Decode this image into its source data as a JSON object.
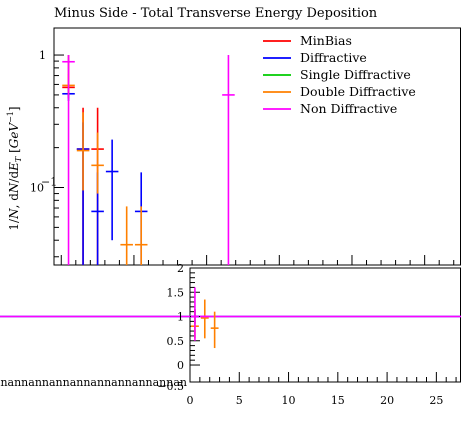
{
  "chart_data": [
    {
      "type": "scatter",
      "title": "Minus Side - Total Transverse Energy Deposition",
      "ylabel": "1/N dN/dE_T [GeV^-1]",
      "ylabel_parts": [
        "1/",
        "N",
        ", d",
        "N",
        "/d",
        "E",
        "T",
        " [",
        "GeV",
        "−1",
        "]"
      ],
      "yscale": "log",
      "ylim": [
        0.026,
        1.6
      ],
      "xlim": [
        -0.5,
        27.5
      ],
      "y_major_ticks": [
        0.1,
        1
      ],
      "y_tick_labels": [
        "10",
        "−1",
        "1"
      ],
      "legend_position": "top-right",
      "series": [
        {
          "name": "MinBias",
          "color": "#ff0000",
          "points": [
            {
              "x": 0.5,
              "y": 0.57,
              "xerr": 0.5,
              "ylo": 0.47,
              "yhi": 1.0
            },
            {
              "x": 1.5,
              "y": 0.195,
              "xerr": 0.5,
              "ylo": 0.0,
              "yhi": 0.4
            },
            {
              "x": 2.5,
              "y": 0.195,
              "xerr": 0.5,
              "ylo": 0.0,
              "yhi": 0.4
            }
          ]
        },
        {
          "name": "Diffractive",
          "color": "#0000ff",
          "points": [
            {
              "x": 0.5,
              "y": 0.51,
              "xerr": 0.5,
              "ylo": 0.45,
              "yhi": 0.57
            },
            {
              "x": 1.5,
              "y": 0.195,
              "xerr": 0.5,
              "ylo": 0.0,
              "yhi": 0.31
            },
            {
              "x": 2.5,
              "y": 0.066,
              "xerr": 0.5,
              "ylo": 0.0,
              "yhi": 0.13
            },
            {
              "x": 3.5,
              "y": 0.132,
              "xerr": 0.5,
              "ylo": 0.04,
              "yhi": 0.23
            },
            {
              "x": 5.5,
              "y": 0.066,
              "xerr": 0.5,
              "ylo": 0.0,
              "yhi": 0.13
            }
          ]
        },
        {
          "name": "Single Diffractive",
          "color": "#00cc00",
          "points": []
        },
        {
          "name": "Double Diffractive",
          "color": "#ff8000",
          "points": [
            {
              "x": 0.5,
              "y": 0.59,
              "xerr": 0.5,
              "ylo": 0.5,
              "yhi": 0.72
            },
            {
              "x": 1.5,
              "y": 0.19,
              "xerr": 0.5,
              "ylo": 0.095,
              "yhi": 0.37
            },
            {
              "x": 2.5,
              "y": 0.147,
              "xerr": 0.5,
              "ylo": 0.09,
              "yhi": 0.26
            },
            {
              "x": 4.5,
              "y": 0.037,
              "xerr": 0.5,
              "ylo": 0.0,
              "yhi": 0.072
            },
            {
              "x": 5.5,
              "y": 0.037,
              "xerr": 0.5,
              "ylo": 0.0,
              "yhi": 0.072
            }
          ]
        },
        {
          "name": "Non Diffractive",
          "color": "#ff00ff",
          "points": [
            {
              "x": 0.5,
              "y": 0.89,
              "xerr": 0.5,
              "ylo": 0.0,
              "yhi": 1.0
            },
            {
              "x": 11.5,
              "y": 0.5,
              "xerr": 0.5,
              "ylo": 0.0,
              "yhi": 1.0
            }
          ]
        }
      ]
    },
    {
      "type": "scatter",
      "xlim": [
        -19,
        27.5
      ],
      "ylim": [
        -0.35,
        2.0
      ],
      "x_ticks": [
        0,
        5,
        10,
        15,
        20,
        25
      ],
      "x_tick_labels": [
        "0",
        "5",
        "10",
        "15",
        "20",
        "25"
      ],
      "y_ticks": [
        0,
        0.5,
        1,
        1.5,
        2
      ],
      "y_tick_labels": [
        "0",
        "0.5",
        "1",
        "1.5",
        "2"
      ],
      "y_bottom_label": "−0.5",
      "x_axis_text": "nnannannannannannannannannan",
      "reference_lines": [
        {
          "color": "#0000ff",
          "y": 1.0
        },
        {
          "color": "#ff00ff",
          "y": 1.0
        }
      ],
      "series": [
        {
          "name": "Diffractive",
          "color": "#0000ff",
          "points": [
            {
              "x": 0.5,
              "y": 1.0,
              "xerr": 0.5,
              "ylo": 0.85,
              "yhi": 1.15
            }
          ]
        },
        {
          "name": "Double Diffractive",
          "color": "#ff8000",
          "points": [
            {
              "x": 0.5,
              "y": 0.8,
              "xerr": 0.5,
              "ylo": 0.55,
              "yhi": 1.15
            },
            {
              "x": 1.5,
              "y": 0.97,
              "xerr": 0.5,
              "ylo": 0.55,
              "yhi": 1.35
            },
            {
              "x": 2.5,
              "y": 0.76,
              "xerr": 0.5,
              "ylo": 0.35,
              "yhi": 1.1
            }
          ]
        },
        {
          "name": "Non Diffractive",
          "color": "#ff00ff",
          "points": [
            {
              "x": 0.5,
              "y": 1.0,
              "xerr": 0.5,
              "ylo": 0.5,
              "yhi": 1.6
            },
            {
              "x": 1.5,
              "y": 1.0,
              "xerr": 0.5,
              "ylo": 0.98,
              "yhi": 1.02
            }
          ]
        }
      ]
    }
  ]
}
